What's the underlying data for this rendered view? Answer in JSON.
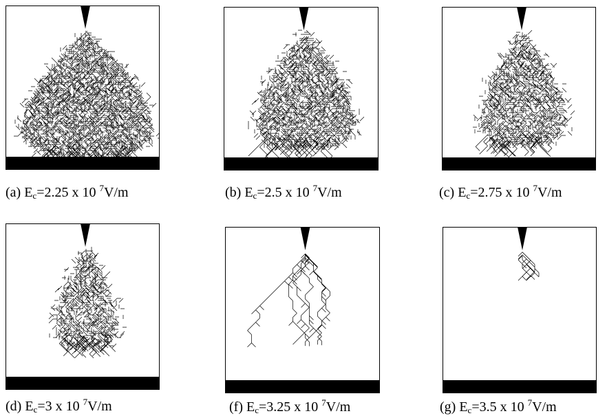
{
  "panels": [
    {
      "label": "(a) E",
      "sub": "c",
      "text": "=2.25 x 10 ",
      "sup": "7",
      "unit": "V/m"
    },
    {
      "label": "(b) E",
      "sub": "c",
      "text": "=2.5 x 10 ",
      "sup": "7",
      "unit": "V/m"
    },
    {
      "label": "(c) E",
      "sub": "c",
      "text": "=2.75 x 10 ",
      "sup": "7",
      "unit": "V/m"
    },
    {
      "label": "(d) E",
      "sub": "c",
      "text": "=3 x 10 ",
      "sup": "7",
      "unit": "V/m"
    },
    {
      "label": "(f) E",
      "sub": "c",
      "text": "=3.25 x 10 ",
      "sup": "7",
      "unit": "V/m"
    },
    {
      "label": "(g) E",
      "sub": "c",
      "text": "=3.5 x 10 ",
      "sup": "7",
      "unit": "V/m"
    }
  ]
}
